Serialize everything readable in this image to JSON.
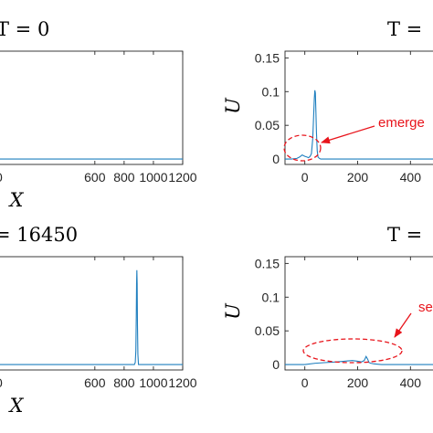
{
  "chart_data": [
    {
      "type": "line",
      "title": "T = 0",
      "xlabel": "X",
      "ylabel": "",
      "xlim": [
        -110,
        1200
      ],
      "ylim": [
        -0.008,
        0.16
      ],
      "xticks": [
        "600",
        "800",
        "1000",
        "1200"
      ],
      "yticks": [],
      "series": [
        {
          "x": [
            -110,
            1200
          ],
          "y": [
            0,
            0
          ]
        }
      ]
    },
    {
      "type": "line",
      "title": "T = ",
      "xlabel": "",
      "ylabel": "U",
      "xlim": [
        -75,
        520
      ],
      "ylim": [
        -0.008,
        0.16
      ],
      "xticks": [
        "0",
        "200",
        "400"
      ],
      "yticks": [
        "0",
        "0.05",
        "0.1",
        "0.15"
      ],
      "series": [
        {
          "x": [
            -75,
            -50,
            -30,
            -20,
            -10,
            0,
            8,
            14,
            20,
            25,
            30,
            33,
            36,
            38,
            40,
            42,
            44,
            47,
            50,
            55,
            60,
            80,
            520
          ],
          "y": [
            0,
            0,
            0.001,
            0.003,
            0.006,
            0.004,
            0.003,
            0.002,
            0.004,
            0.008,
            0.03,
            0.06,
            0.09,
            0.102,
            0.098,
            0.07,
            0.04,
            0.012,
            0.003,
            0.001,
            0,
            0,
            0
          ]
        }
      ],
      "annotations": [
        {
          "text": "emerge",
          "target": "dashed ellipse around small wave near X = -40"
        }
      ]
    },
    {
      "type": "line",
      "title": "= 16450",
      "xlabel": "X",
      "ylabel": "",
      "xlim": [
        -110,
        1200
      ],
      "ylim": [
        -0.008,
        0.16
      ],
      "xticks": [
        "600",
        "800",
        "1000",
        "1200"
      ],
      "yticks": [],
      "series": [
        {
          "x": [
            -110,
            870,
            876,
            880,
            883,
            885,
            887,
            889,
            891,
            894,
            898,
            1200
          ],
          "y": [
            0,
            0,
            0.003,
            0.02,
            0.07,
            0.12,
            0.14,
            0.12,
            0.06,
            0.015,
            0,
            0
          ]
        }
      ]
    },
    {
      "type": "line",
      "title": "T =",
      "xlabel": "",
      "ylabel": "U",
      "xlim": [
        -75,
        520
      ],
      "ylim": [
        -0.008,
        0.16
      ],
      "xticks": [
        "0",
        "200",
        "400"
      ],
      "yticks": [
        "0",
        "0.05",
        "0.1",
        "0.15"
      ],
      "series": [
        {
          "x": [
            -75,
            0,
            40,
            80,
            120,
            150,
            180,
            200,
            215,
            225,
            232,
            238,
            243,
            250,
            262,
            290,
            520
          ],
          "y": [
            0,
            0,
            0.002,
            0.003,
            0.004,
            0.005,
            0.006,
            0.005,
            0.004,
            0.006,
            0.012,
            0.008,
            0.003,
            0.002,
            0.001,
            0,
            0
          ]
        }
      ],
      "annotations": [
        {
          "text": "se",
          "target": "dashed ellipse around long low wave train"
        }
      ]
    }
  ],
  "colors": {
    "line": "#1f7fbf",
    "annotation": "#e8141b",
    "axis": "#262626"
  }
}
